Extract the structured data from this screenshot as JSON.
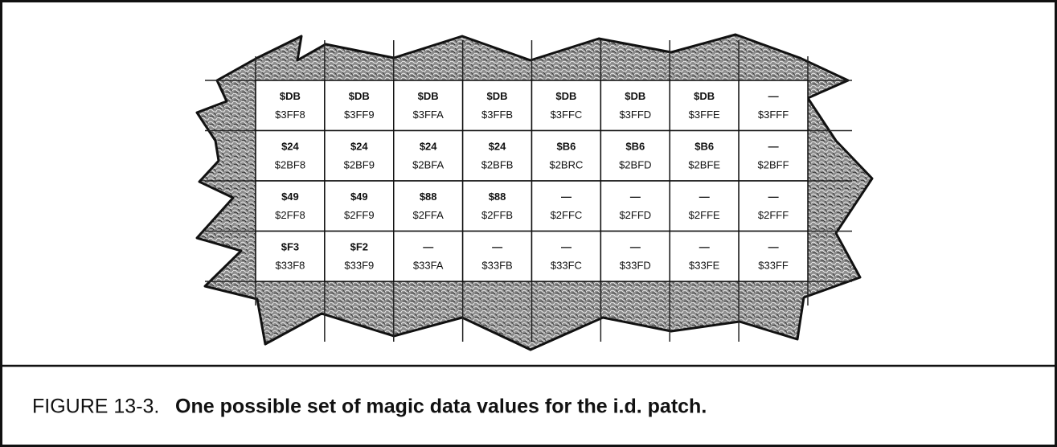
{
  "table": {
    "rows": [
      [
        {
          "value": "$DB",
          "address": "$3FF8"
        },
        {
          "value": "$DB",
          "address": "$3FF9"
        },
        {
          "value": "$DB",
          "address": "$3FFA"
        },
        {
          "value": "$DB",
          "address": "$3FFB"
        },
        {
          "value": "$DB",
          "address": "$3FFC"
        },
        {
          "value": "$DB",
          "address": "$3FFD"
        },
        {
          "value": "$DB",
          "address": "$3FFE"
        },
        {
          "value": "—",
          "address": "$3FFF"
        }
      ],
      [
        {
          "value": "$24",
          "address": "$2BF8"
        },
        {
          "value": "$24",
          "address": "$2BF9"
        },
        {
          "value": "$24",
          "address": "$2BFA"
        },
        {
          "value": "$24",
          "address": "$2BFB"
        },
        {
          "value": "$B6",
          "address": "$2BRC"
        },
        {
          "value": "$B6",
          "address": "$2BFD"
        },
        {
          "value": "$B6",
          "address": "$2BFE"
        },
        {
          "value": "—",
          "address": "$2BFF"
        }
      ],
      [
        {
          "value": "$49",
          "address": "$2FF8"
        },
        {
          "value": "$49",
          "address": "$2FF9"
        },
        {
          "value": "$88",
          "address": "$2FFA"
        },
        {
          "value": "$88",
          "address": "$2FFB"
        },
        {
          "value": "—",
          "address": "$2FFC"
        },
        {
          "value": "—",
          "address": "$2FFD"
        },
        {
          "value": "—",
          "address": "$2FFE"
        },
        {
          "value": "—",
          "address": "$2FFF"
        }
      ],
      [
        {
          "value": "$F3",
          "address": "$33F8"
        },
        {
          "value": "$F2",
          "address": "$33F9"
        },
        {
          "value": "—",
          "address": "$33FA"
        },
        {
          "value": "—",
          "address": "$33FB"
        },
        {
          "value": "—",
          "address": "$33FC"
        },
        {
          "value": "—",
          "address": "$33FD"
        },
        {
          "value": "—",
          "address": "$33FE"
        },
        {
          "value": "—",
          "address": "$33FF"
        }
      ]
    ]
  },
  "caption": {
    "number": "FIGURE 13-3.",
    "text": "One possible set of magic data values for the i.d. patch."
  }
}
